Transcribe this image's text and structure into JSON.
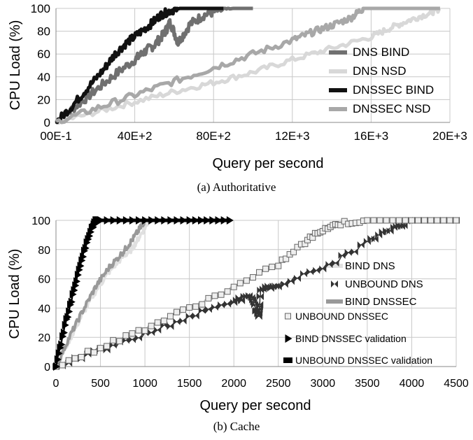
{
  "chart_data": [
    {
      "type": "line",
      "caption": "(a) Authoritative",
      "xlabel": "Query per second",
      "ylabel": "CPU Load (%)",
      "xlim": [
        0,
        20000
      ],
      "ylim": [
        0,
        100
      ],
      "x_tick_values": [
        0,
        4000,
        8000,
        12000,
        16000,
        20000
      ],
      "x_tick_labels": [
        "00E-1",
        "40E+2",
        "80E+2",
        "12E+3",
        "16E+3",
        "20E+3"
      ],
      "y_ticks": [
        0,
        20,
        40,
        60,
        80,
        100
      ],
      "grid": true,
      "legend_position": "right",
      "series": [
        {
          "name": "DNS BIND",
          "color": "#707070",
          "x": [
            0,
            1000,
            2000,
            3000,
            4000,
            4500,
            5000,
            5500,
            5800,
            6200,
            6800,
            7500,
            8200,
            9000,
            10000
          ],
          "y": [
            0,
            14,
            28,
            42,
            55,
            62,
            68,
            78,
            88,
            70,
            86,
            94,
            98,
            100,
            100
          ]
        },
        {
          "name": "DNS NSD",
          "color": "#d8d8d8",
          "x": [
            0,
            2000,
            4000,
            6000,
            8000,
            10000,
            12000,
            14000,
            16000,
            17000,
            18000,
            19000,
            19500
          ],
          "y": [
            0,
            9,
            18,
            27,
            35,
            44,
            55,
            65,
            75,
            83,
            90,
            96,
            100
          ]
        },
        {
          "name": "DNSSEC BIND",
          "color": "#111111",
          "x": [
            0,
            800,
            1600,
            2400,
            3000,
            3600,
            4200,
            4800,
            5300,
            5800,
            6300,
            6800,
            7500,
            8500
          ],
          "y": [
            0,
            14,
            30,
            46,
            60,
            70,
            78,
            86,
            94,
            98,
            100,
            100,
            100,
            100
          ]
        },
        {
          "name": "DNSSEC NSD",
          "color": "#a8a8a8",
          "x": [
            0,
            2000,
            4000,
            6000,
            8000,
            10000,
            12000,
            13000,
            14000,
            15000,
            15600,
            16500,
            18000,
            19500
          ],
          "y": [
            0,
            12,
            24,
            36,
            48,
            60,
            72,
            79,
            85,
            92,
            100,
            100,
            100,
            100
          ]
        }
      ]
    },
    {
      "type": "line",
      "caption": "(b) Cache",
      "xlabel": "Query per second",
      "ylabel": "CPU Load (%)",
      "xlim": [
        0,
        4500
      ],
      "ylim": [
        0,
        100
      ],
      "x_ticks": [
        0,
        500,
        1000,
        1500,
        2000,
        2500,
        3000,
        3500,
        4000,
        4500
      ],
      "y_ticks": [
        0,
        20,
        40,
        60,
        80,
        100
      ],
      "grid": true,
      "legend_position": "right",
      "series": [
        {
          "name": "BIND DNS",
          "color": "#e0e0e0",
          "marker": "none",
          "x": [
            0,
            150,
            300,
            450,
            600,
            750,
            850,
            950,
            1050,
            1100,
            1500,
            1950
          ],
          "y": [
            0,
            18,
            36,
            52,
            65,
            75,
            80,
            90,
            100,
            100,
            100,
            100
          ]
        },
        {
          "name": "UNBOUND DNS",
          "color": "#333333",
          "marker": "bowtie",
          "x": [
            0,
            500,
            1000,
            1500,
            2000,
            2200,
            2280,
            2300,
            2500,
            3000,
            3500,
            3800,
            4000,
            4500
          ],
          "y": [
            0,
            11,
            22,
            34,
            45,
            48,
            33,
            52,
            56,
            67,
            85,
            95,
            100,
            100
          ]
        },
        {
          "name": "BIND DNSSEC",
          "color": "#999999",
          "marker": "none",
          "x": [
            0,
            150,
            300,
            450,
            600,
            750,
            850,
            950,
            1000,
            1500,
            1950
          ],
          "y": [
            0,
            20,
            38,
            55,
            68,
            78,
            86,
            95,
            100,
            100,
            100
          ]
        },
        {
          "name": "UNBOUND DNSSEC",
          "color": "#b0b0b0",
          "marker": "square",
          "x": [
            0,
            500,
            1000,
            1500,
            2000,
            2500,
            2800,
            3000,
            3200,
            3500,
            4000,
            4500
          ],
          "y": [
            0,
            13,
            26,
            40,
            54,
            70,
            85,
            94,
            98,
            100,
            100,
            100
          ]
        },
        {
          "name": "BIND DNSSEC validation",
          "color": "#000000",
          "marker": "triangle",
          "x": [
            0,
            100,
            200,
            300,
            400,
            450,
            500,
            1000,
            1500,
            1950
          ],
          "y": [
            0,
            28,
            52,
            76,
            95,
            100,
            100,
            100,
            100,
            100
          ]
        },
        {
          "name": "UNBOUND DNSSEC validation",
          "color": "#000000",
          "marker": "none",
          "x": [
            480,
            1000,
            1500,
            1950
          ],
          "y": [
            100,
            100,
            100,
            100
          ]
        }
      ]
    }
  ]
}
